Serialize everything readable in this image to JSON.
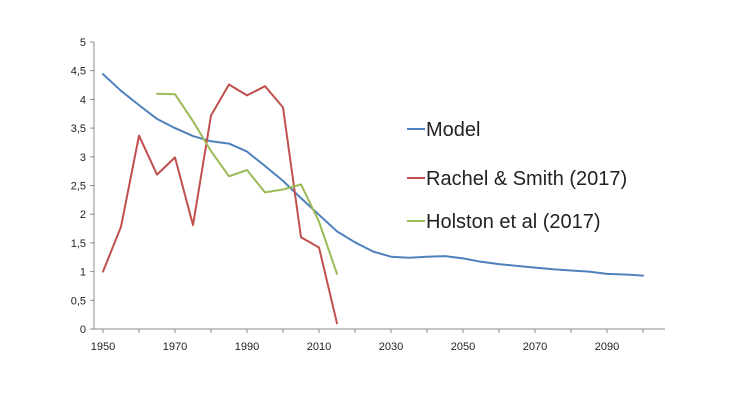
{
  "chart_data": {
    "type": "line",
    "title": "",
    "xlabel": "",
    "ylabel": "",
    "xlim": [
      1950,
      2100
    ],
    "ylim": [
      0,
      5
    ],
    "grid": false,
    "legend_position": "right",
    "x_ticks": [
      "1950",
      "1970",
      "1990",
      "2010",
      "2030",
      "2050",
      "2070",
      "2090"
    ],
    "x_tick_values": [
      1950,
      1970,
      1990,
      2010,
      2030,
      2050,
      2070,
      2090
    ],
    "y_ticks": [
      "0",
      "0,5",
      "1",
      "1,5",
      "2",
      "2,5",
      "3",
      "3,5",
      "4",
      "4,5",
      "5"
    ],
    "y_tick_values": [
      0,
      0.5,
      1,
      1.5,
      2,
      2.5,
      3,
      3.5,
      4,
      4.5,
      5
    ],
    "series": [
      {
        "name": "Model",
        "color": "#4f81bd",
        "x": [
          1950,
          1955,
          1960,
          1965,
          1970,
          1975,
          1980,
          1985,
          1990,
          1995,
          2000,
          2005,
          2010,
          2015,
          2020,
          2025,
          2030,
          2035,
          2040,
          2045,
          2050,
          2055,
          2060,
          2065,
          2070,
          2075,
          2080,
          2085,
          2090,
          2095,
          2100
        ],
        "y": [
          4.44,
          4.15,
          3.9,
          3.66,
          3.5,
          3.36,
          3.27,
          3.23,
          3.09,
          2.84,
          2.58,
          2.28,
          1.99,
          1.7,
          1.51,
          1.35,
          1.26,
          1.24,
          1.26,
          1.27,
          1.23,
          1.17,
          1.13,
          1.1,
          1.07,
          1.04,
          1.02,
          1.0,
          0.96,
          0.95,
          0.93
        ]
      },
      {
        "name": "Rachel & Smith (2017)",
        "color": "#c0504d",
        "x": [
          1950,
          1955,
          1960,
          1965,
          1970,
          1975,
          1980,
          1985,
          1990,
          1995,
          2000,
          2005,
          2010,
          2015
        ],
        "y": [
          1.0,
          1.78,
          3.37,
          2.69,
          2.99,
          1.81,
          3.72,
          4.26,
          4.07,
          4.23,
          3.86,
          1.6,
          1.42,
          0.1
        ]
      },
      {
        "name": "Holston et al (2017)",
        "color": "#9bbb59",
        "x": [
          1965,
          1970,
          1975,
          1980,
          1985,
          1990,
          1995,
          2000,
          2005,
          2010,
          2015
        ],
        "y": [
          4.1,
          4.09,
          3.62,
          3.1,
          2.66,
          2.77,
          2.38,
          2.43,
          2.52,
          1.87,
          0.96
        ]
      }
    ]
  }
}
